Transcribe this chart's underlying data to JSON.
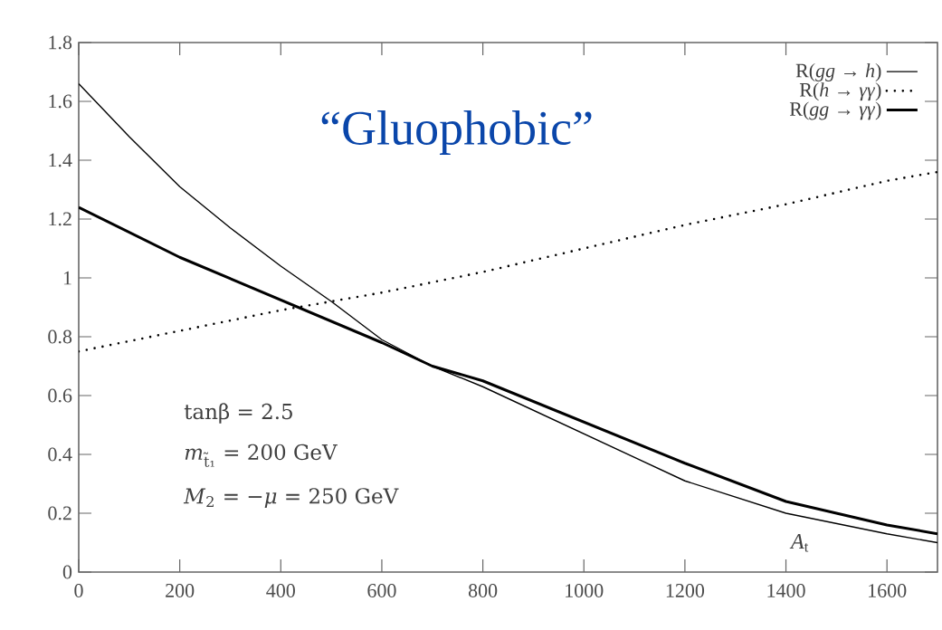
{
  "chart_data": {
    "type": "line",
    "title": "“Gluophobic”",
    "xlabel": "*A*$_{t}$",
    "annotations": [
      "tanβ = 2.5",
      "*m*$_{t̃₁}$ = 200 GeV",
      "*M*$_{2}$ = −*μ* = 250 GeV"
    ],
    "xlim": [
      0,
      1700
    ],
    "ylim": [
      0,
      1.8
    ],
    "xticks": [
      0,
      200,
      400,
      600,
      800,
      1000,
      1200,
      1400,
      1600
    ],
    "yticks": [
      0,
      0.2,
      0.4,
      0.6,
      0.8,
      1,
      1.2,
      1.4,
      1.6,
      1.8
    ],
    "legend": "top right",
    "marker": "none",
    "grid": false,
    "series": [
      {
        "name": "R(*gg* → *h*)",
        "color": "#000000",
        "line_style": "solid",
        "x": [
          0,
          100,
          200,
          300,
          400,
          500,
          600,
          700,
          800,
          1000,
          1200,
          1400,
          1600,
          1700
        ],
        "values": [
          1.66,
          1.48,
          1.31,
          1.17,
          1.04,
          0.92,
          0.79,
          0.7,
          0.63,
          0.47,
          0.31,
          0.2,
          0.13,
          0.1
        ]
      },
      {
        "name": "R(*h* → *γγ*)",
        "color": "#000000",
        "line_style": "dotted",
        "x": [
          0,
          200,
          400,
          600,
          800,
          1000,
          1200,
          1400,
          1600,
          1700
        ],
        "values": [
          0.75,
          0.82,
          0.89,
          0.95,
          1.02,
          1.1,
          1.18,
          1.25,
          1.33,
          1.36
        ]
      },
      {
        "name": "R(*gg* → *γγ*)",
        "color": "#000000",
        "line_style": "solid",
        "x": [
          0,
          200,
          400,
          600,
          700,
          800,
          1000,
          1200,
          1400,
          1600,
          1700
        ],
        "values": [
          1.24,
          1.07,
          0.925,
          0.78,
          0.7,
          0.65,
          0.51,
          0.37,
          0.24,
          0.16,
          0.13
        ]
      }
    ]
  }
}
